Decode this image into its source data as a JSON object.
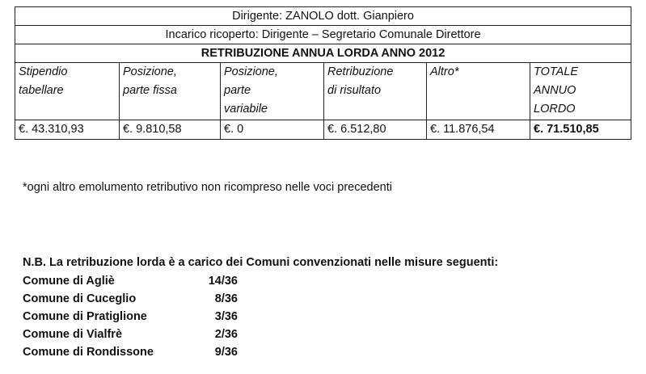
{
  "header": {
    "dirigente": "Dirigente: ZANOLO dott. Gianpiero",
    "incarico": "Incarico ricoperto: Dirigente – Segretario Comunale Direttore",
    "title": "RETRIBUZIONE ANNUA LORDA ANNO 2012"
  },
  "table": {
    "columns": [
      [
        "Stipendio",
        "tabellare"
      ],
      [
        "Posizione,",
        "parte fissa"
      ],
      [
        "Posizione,",
        "parte",
        "variabile"
      ],
      [
        "Retribuzione",
        "di risultato"
      ],
      [
        "Altro*"
      ],
      [
        "TOTALE",
        "ANNUO",
        "LORDO"
      ]
    ],
    "rows": [
      [
        "€. 43.310,93",
        "€. 9.810,58",
        "€. 0",
        "€. 6.512,80",
        "€. 11.876,54",
        "€. 71.510,85"
      ]
    ]
  },
  "footnote": "*ogni altro emolumento retributivo non ricompreso nelle voci precedenti",
  "note": {
    "title": "N.B. La retribuzione lorda è a carico dei Comuni convenzionati nelle misure seguenti:",
    "items": [
      [
        "Comune di Agliè",
        "14/36"
      ],
      [
        "Comune di Cuceglio",
        "8/36"
      ],
      [
        "Comune di Pratiglione",
        "3/36"
      ],
      [
        "Comune di Vialfrè",
        "2/36"
      ],
      [
        "Comune di Rondissone",
        "9/36"
      ]
    ]
  }
}
